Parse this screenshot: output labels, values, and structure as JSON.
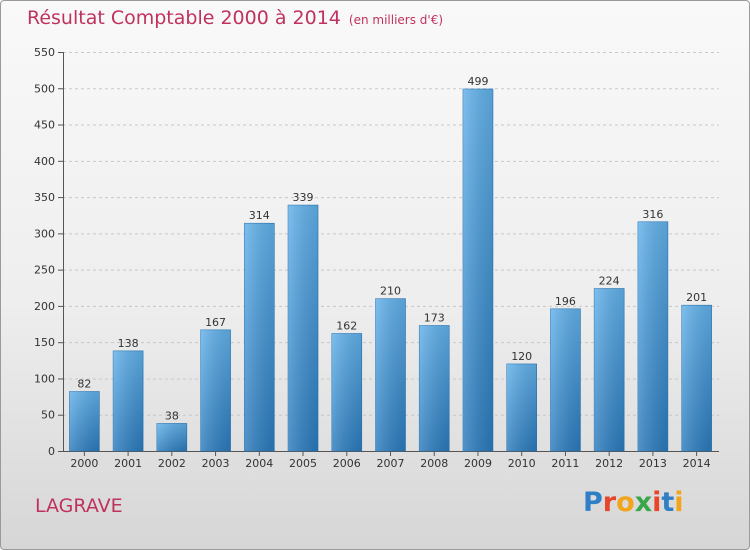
{
  "title": "Résultat Comptable 2000 à 2014",
  "subtitle": "(en milliers d'€)",
  "commune": "LAGRAVE",
  "logo_text": "Proxiti",
  "colors": {
    "title": "#c0325e",
    "bar_top": "#62b1ea",
    "bar_bottom": "#2b7bbd",
    "logo": [
      "#2e7fc6",
      "#e8462a",
      "#f2a51a",
      "#3aa64a",
      "#e8462a",
      "#2e7fc6",
      "#f2a51a"
    ]
  },
  "chart_data": {
    "type": "bar",
    "categories": [
      "2000",
      "2001",
      "2002",
      "2003",
      "2004",
      "2005",
      "2006",
      "2007",
      "2008",
      "2009",
      "2010",
      "2011",
      "2012",
      "2013",
      "2014"
    ],
    "values": [
      82,
      138,
      38,
      167,
      314,
      339,
      162,
      210,
      173,
      499,
      120,
      196,
      224,
      316,
      201
    ],
    "ylim": [
      0,
      550
    ],
    "yticks": [
      0,
      50,
      100,
      150,
      200,
      250,
      300,
      350,
      400,
      450,
      500,
      550
    ],
    "grid": true,
    "data_labels": true
  }
}
